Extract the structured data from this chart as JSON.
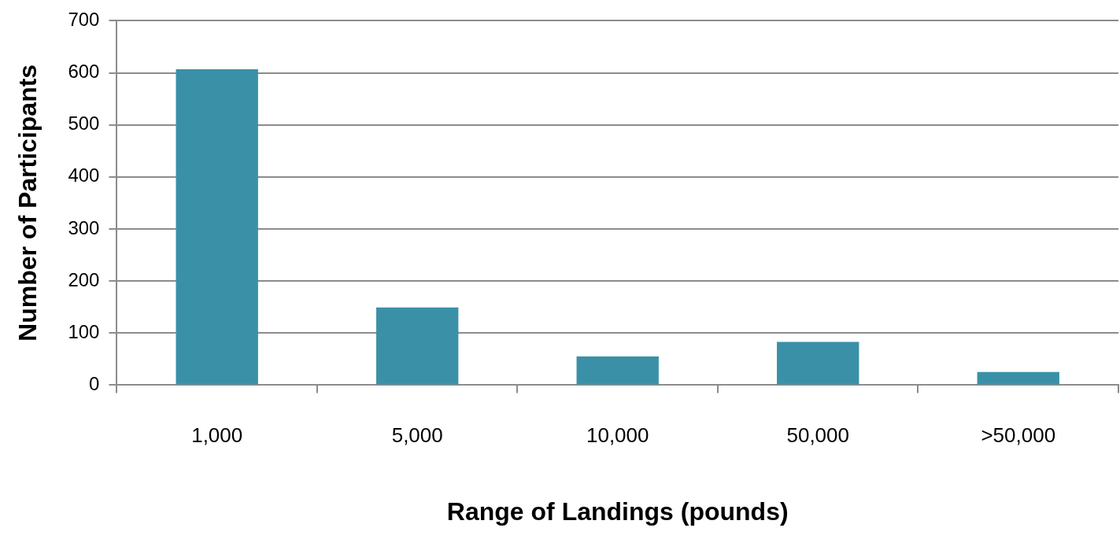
{
  "chart_data": {
    "type": "bar",
    "xlabel": "Range of Landings (pounds)",
    "ylabel": "Number of Participants",
    "categories": [
      "1,000",
      "5,000",
      "10,000",
      "50,000",
      ">50,000"
    ],
    "values": [
      607,
      149,
      55,
      83,
      25
    ],
    "color": "#3a91a7",
    "ylim": [
      0,
      700
    ],
    "yticks": [
      0,
      100,
      200,
      300,
      400,
      500,
      600,
      700
    ],
    "grid": "y"
  }
}
